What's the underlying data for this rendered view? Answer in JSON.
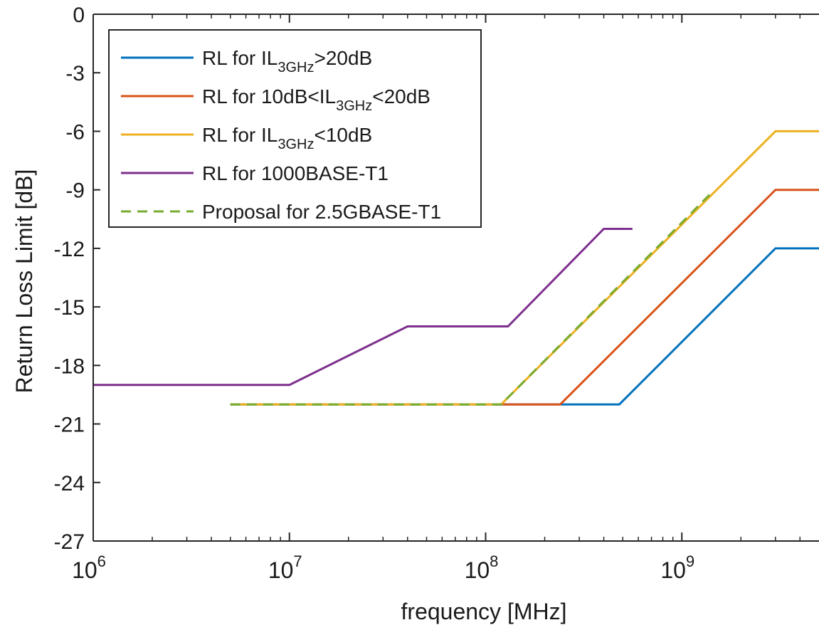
{
  "chart_data": {
    "type": "line",
    "title": "",
    "xlabel": "frequency [MHz]",
    "ylabel": "Return Loss Limit [dB]",
    "x_scale": "log",
    "xlim": [
      1000000,
      5000000000
    ],
    "ylim": [
      -27,
      0
    ],
    "x_ticks": [
      {
        "value": 1000000,
        "base": "10",
        "exp": "6"
      },
      {
        "value": 10000000,
        "base": "10",
        "exp": "7"
      },
      {
        "value": 100000000,
        "base": "10",
        "exp": "8"
      },
      {
        "value": 1000000000,
        "base": "10",
        "exp": "9"
      }
    ],
    "y_ticks": [
      0,
      -3,
      -6,
      -9,
      -12,
      -15,
      -18,
      -21,
      -24,
      -27
    ],
    "y_tick_labels": [
      "0",
      "-3",
      "-6",
      "-9",
      "-12",
      "-15",
      "-18",
      "-21",
      "-24",
      "-27"
    ],
    "grid": false,
    "legend_position": "top-left",
    "series": [
      {
        "name": "RL for IL3GHz>20dB",
        "legend": {
          "pre": "RL for IL",
          "sub": "3GHz",
          "post": ">20dB"
        },
        "color": "#0072BD",
        "dash": "solid",
        "x": [
          5000000,
          480000000,
          3000000000,
          5000000000
        ],
        "y": [
          -20,
          -20,
          -12,
          -12
        ]
      },
      {
        "name": "RL for 10dB<IL3GHz<20dB",
        "legend": {
          "pre": "RL for 10dB<IL",
          "sub": "3GHz",
          "post": "<20dB"
        },
        "color": "#D95319",
        "dash": "solid",
        "x": [
          5000000,
          240000000,
          3000000000,
          5000000000
        ],
        "y": [
          -20,
          -20,
          -9,
          -9
        ]
      },
      {
        "name": "RL for IL3GHz<10dB",
        "legend": {
          "pre": "RL for IL",
          "sub": "3GHz",
          "post": "<10dB"
        },
        "color": "#EDB120",
        "dash": "solid",
        "x": [
          5000000,
          120000000,
          3000000000,
          5000000000
        ],
        "y": [
          -20,
          -20,
          -6,
          -6
        ]
      },
      {
        "name": "RL for 1000BASE-T1",
        "legend": {
          "pre": "RL for 1000BASE-T1",
          "sub": "",
          "post": ""
        },
        "color": "#7E2F8E",
        "dash": "solid",
        "x": [
          1000000,
          10000000,
          40000000,
          130000000,
          400000000,
          560000000
        ],
        "y": [
          -19,
          -19,
          -16,
          -16,
          -11,
          -11
        ]
      },
      {
        "name": "Proposal for 2.5GBASE-T1",
        "legend": {
          "pre": "Proposal for 2.5GBASE-T1",
          "sub": "",
          "post": ""
        },
        "color": "#77AC30",
        "dash": "dashed",
        "x": [
          5000000,
          120000000,
          1400000000
        ],
        "y": [
          -20,
          -20,
          -9.2
        ]
      }
    ]
  }
}
